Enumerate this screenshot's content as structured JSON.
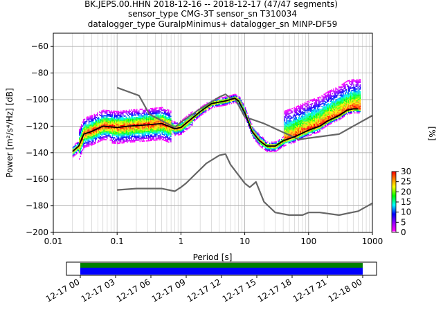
{
  "title": {
    "line1": "BK.JEPS.00.HHN   2018-12-16 -- 2018-12-17  (47/47 segments)",
    "line2": "sensor_type CMG-3T sensor_sn T310034",
    "line3": "datalogger_type GuralpMinimus+ datalogger_sn MINP-DF59"
  },
  "chart_data": {
    "type": "heatmap",
    "xlabel": "Period [s]",
    "ylabel": "Power [m²/s⁴/Hz] [dB]",
    "x_scale": "log",
    "xlim": [
      0.01,
      1000
    ],
    "ylim": [
      -200,
      -50
    ],
    "x_ticks": [
      0.01,
      0.1,
      1,
      10,
      100,
      1000
    ],
    "x_tick_labels": [
      "0.01",
      "0.1",
      "1",
      "10",
      "100",
      "1000"
    ],
    "y_ticks": [
      -200,
      -180,
      -160,
      -140,
      -120,
      -100,
      -80,
      -60
    ],
    "y_tick_labels": [
      "−200",
      "−180",
      "−160",
      "−140",
      "−120",
      "−100",
      "−80",
      "−60"
    ],
    "grid": true,
    "colorbar": {
      "label": "[%]",
      "range": [
        0,
        30
      ],
      "ticks": [
        0,
        5,
        10,
        15,
        20,
        25,
        30
      ],
      "tick_labels": [
        "0",
        "5",
        "10",
        "15",
        "20",
        "25",
        "30"
      ],
      "colormap": "pqlx"
    },
    "series": [
      {
        "style": "gray",
        "x": [
          0.1,
          0.22,
          0.32,
          0.8,
          1.0,
          2.0,
          4.0,
          5.0,
          6.0,
          7.0,
          10.0,
          20.0,
          70.0,
          300.0,
          1000.0
        ],
        "y": [
          -91,
          -97,
          -111,
          -121,
          -117,
          -107,
          -98,
          -96,
          -99,
          -99,
          -113,
          -118,
          -130,
          -126,
          -112
        ]
      },
      {
        "style": "gray",
        "x": [
          0.1,
          0.2,
          0.5,
          0.8,
          1.0,
          1.2,
          2.5,
          4.0,
          5.0,
          6.0,
          10.0,
          12.0,
          15.0,
          20.0,
          30.0,
          50.0,
          80.0,
          100.0,
          150.0,
          300.0,
          600.0,
          1000.0
        ],
        "y": [
          -168,
          -167,
          -167,
          -169,
          -166,
          -163,
          -148,
          -142,
          -141,
          -149,
          -163,
          -166,
          -162,
          -177,
          -185,
          -187,
          -187,
          -185,
          -185,
          -187,
          -184,
          -178
        ]
      },
      {
        "style": "black",
        "x": [
          0.02,
          0.025,
          0.03,
          0.04,
          0.06,
          0.1,
          0.15,
          0.3,
          0.5,
          0.8,
          1.0,
          2.0,
          3.0,
          5.0,
          7.0,
          8.0,
          10.0,
          13.0,
          17.0,
          22.0,
          30.0,
          40.0,
          60.0,
          100.0,
          150.0,
          200.0,
          300.0,
          400.0,
          500.0,
          600.0
        ],
        "y": [
          -139,
          -135,
          -126,
          -124,
          -120,
          -121,
          -120,
          -119,
          -118,
          -122,
          -121,
          -109,
          -103,
          -101,
          -99,
          -101,
          -110,
          -124,
          -131,
          -135,
          -135,
          -131,
          -128,
          -123,
          -120,
          -116,
          -112,
          -108,
          -107,
          -107
        ]
      }
    ],
    "time_axis": {
      "tick_labels": [
        "12-17 00",
        "12-17 03",
        "12-17 06",
        "12-17 09",
        "12-17 12",
        "12-17 15",
        "12-17 18",
        "12-17 21",
        "12-18 00"
      ],
      "coverage_colors": [
        "#008000",
        "#0000ff"
      ]
    }
  }
}
